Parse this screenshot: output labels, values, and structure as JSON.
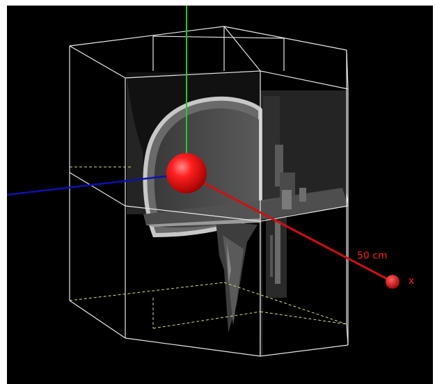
{
  "viewer": {
    "scale_label": "50 cm",
    "axis_x_label": "x",
    "colors": {
      "background": "#000000",
      "x_axis": "#e01010",
      "y_axis": "#1010b0",
      "z_axis": "#22cc22",
      "origin_sphere": "#ff1a1a",
      "bounding_box": "#e8e8e8",
      "bounding_box_hidden": "#d8d890"
    }
  }
}
